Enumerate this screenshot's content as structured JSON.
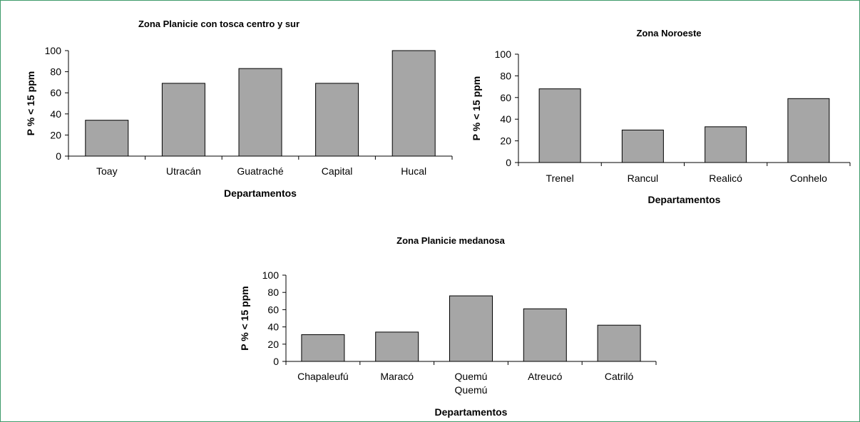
{
  "chart_data": [
    {
      "type": "bar",
      "title": "Zona Planicie con tosca centro y sur",
      "xlabel": "Departamentos",
      "ylabel": "P % < 15 ppm",
      "categories": [
        [
          "Toay"
        ],
        [
          "Utracán"
        ],
        [
          "Guatraché"
        ],
        [
          "Capital"
        ],
        [
          "Hucal"
        ]
      ],
      "values": [
        34,
        69,
        83,
        69,
        100
      ],
      "ylim": [
        0,
        100
      ],
      "yticks": [
        0,
        20,
        40,
        60,
        80,
        100
      ],
      "grid": false,
      "bar_color": "#a6a6a6"
    },
    {
      "type": "bar",
      "title": "Zona Noroeste",
      "xlabel": "Departamentos",
      "ylabel": "P % < 15 ppm",
      "categories": [
        [
          "Trenel"
        ],
        [
          "Rancul"
        ],
        [
          "Realicó"
        ],
        [
          "Conhelo"
        ]
      ],
      "values": [
        68,
        30,
        33,
        59
      ],
      "ylim": [
        0,
        100
      ],
      "yticks": [
        0,
        20,
        40,
        60,
        80,
        100
      ],
      "grid": false,
      "bar_color": "#a6a6a6"
    },
    {
      "type": "bar",
      "title": "Zona Planicie medanosa",
      "xlabel": "Departamentos",
      "ylabel": "P % < 15 ppm",
      "categories": [
        [
          "Chapaleufú"
        ],
        [
          "Maracó"
        ],
        [
          "Quemú",
          "Quemú"
        ],
        [
          "Atreucó"
        ],
        [
          "Catriló"
        ]
      ],
      "values": [
        31,
        34,
        76,
        61,
        42
      ],
      "ylim": [
        0,
        100
      ],
      "yticks": [
        0,
        20,
        40,
        60,
        80,
        100
      ],
      "grid": false,
      "bar_color": "#a6a6a6"
    }
  ]
}
